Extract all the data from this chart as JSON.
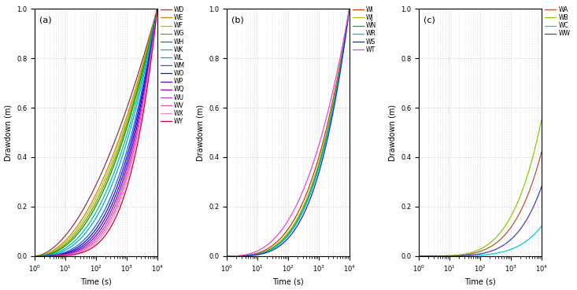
{
  "panels": [
    {
      "label": "(a)",
      "series": [
        {
          "name": "WD",
          "color": "#8B3A3A",
          "exponent": 1.8,
          "scale": 1.0
        },
        {
          "name": "WE",
          "color": "#CC8800",
          "exponent": 2.0,
          "scale": 1.0
        },
        {
          "name": "WF",
          "color": "#BBBB00",
          "exponent": 2.1,
          "scale": 1.0
        },
        {
          "name": "WG",
          "color": "#66AA00",
          "exponent": 2.2,
          "scale": 1.0
        },
        {
          "name": "WH",
          "color": "#009900",
          "exponent": 2.3,
          "scale": 1.0
        },
        {
          "name": "WK",
          "color": "#00BBAA",
          "exponent": 2.5,
          "scale": 1.0
        },
        {
          "name": "WL",
          "color": "#00AADD",
          "exponent": 2.7,
          "scale": 1.0
        },
        {
          "name": "WM",
          "color": "#3355FF",
          "exponent": 3.0,
          "scale": 1.0
        },
        {
          "name": "WO",
          "color": "#0022BB",
          "exponent": 3.2,
          "scale": 1.0
        },
        {
          "name": "WP",
          "color": "#5500CC",
          "exponent": 3.4,
          "scale": 1.0
        },
        {
          "name": "WQ",
          "color": "#8800BB",
          "exponent": 3.6,
          "scale": 1.0
        },
        {
          "name": "WU",
          "color": "#BB44BB",
          "exponent": 3.8,
          "scale": 1.0
        },
        {
          "name": "WV",
          "color": "#EE55AA",
          "exponent": 4.0,
          "scale": 1.0
        },
        {
          "name": "WX",
          "color": "#FF88BB",
          "exponent": 4.2,
          "scale": 1.0
        },
        {
          "name": "WY",
          "color": "#CC0033",
          "exponent": 4.5,
          "scale": 1.0
        }
      ]
    },
    {
      "label": "(b)",
      "series": [
        {
          "name": "WI",
          "color": "#BB4400",
          "exponent": 3.2,
          "scale": 1.0
        },
        {
          "name": "WJ",
          "color": "#BBBB00",
          "exponent": 3.4,
          "scale": 1.0
        },
        {
          "name": "WN",
          "color": "#00AA44",
          "exponent": 3.5,
          "scale": 1.0
        },
        {
          "name": "WR",
          "color": "#00BBCC",
          "exponent": 3.6,
          "scale": 1.0
        },
        {
          "name": "WS",
          "color": "#2222CC",
          "exponent": 3.8,
          "scale": 1.0
        },
        {
          "name": "WT",
          "color": "#EE44DD",
          "exponent": 2.8,
          "scale": 1.0
        }
      ]
    },
    {
      "label": "(c)",
      "series": [
        {
          "name": "WA",
          "color": "#BB5533",
          "exponent": 4.5,
          "scale": 0.42
        },
        {
          "name": "WB",
          "color": "#88CC00",
          "exponent": 4.3,
          "scale": 0.55
        },
        {
          "name": "WC",
          "color": "#00CCDD",
          "exponent": 5.2,
          "scale": 0.12
        },
        {
          "name": "WW",
          "color": "#4444BB",
          "exponent": 5.0,
          "scale": 0.28
        }
      ]
    }
  ],
  "xmin": 1,
  "xmax": 10000,
  "ymin": 0,
  "ymax": 1,
  "xlabel": "Time (s)",
  "ylabel": "Drawdown (m)",
  "bg_color": "#ffffff",
  "grid_color": "#cccccc",
  "grid_style": ":"
}
